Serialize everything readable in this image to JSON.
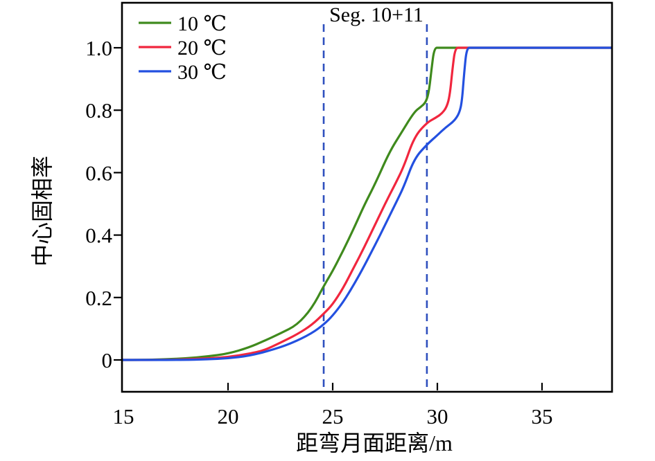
{
  "chart_data": {
    "type": "line",
    "title": "",
    "xlabel": "距弯月面距离/m",
    "ylabel": "中心固相率",
    "annotation": "Seg. 10+11",
    "xlim": [
      14.93,
      38.4
    ],
    "ylim": [
      -0.102,
      1.144
    ],
    "grid": false,
    "legend_position": "upper-left-inside",
    "x_ticks": [
      15,
      20,
      25,
      30,
      35
    ],
    "x_tick_labels": [
      "15",
      "20",
      "25",
      "30",
      "35"
    ],
    "y_ticks": [
      0,
      0.2,
      0.4,
      0.6,
      0.8,
      1.0
    ],
    "y_tick_labels": [
      "0",
      "0.2",
      "0.4",
      "0.6",
      "0.8",
      "1.0"
    ],
    "dashed_guides": {
      "x_values": [
        24.57,
        29.5
      ],
      "color": "#2e4fbe",
      "label": "Seg. 10+11"
    },
    "series": [
      {
        "name": "10 ℃",
        "color": "#3f8a1d",
        "points": [
          [
            14.93,
            0
          ],
          [
            16,
            0
          ],
          [
            17,
            0.002
          ],
          [
            18,
            0.005
          ],
          [
            19,
            0.011
          ],
          [
            20,
            0.02
          ],
          [
            21,
            0.04
          ],
          [
            21.7,
            0.06
          ],
          [
            22.5,
            0.085
          ],
          [
            23.3,
            0.112
          ],
          [
            24,
            0.165
          ],
          [
            24.6,
            0.24
          ],
          [
            25,
            0.285
          ],
          [
            25.5,
            0.35
          ],
          [
            26,
            0.42
          ],
          [
            26.5,
            0.495
          ],
          [
            27,
            0.56
          ],
          [
            27.7,
            0.665
          ],
          [
            28.3,
            0.73
          ],
          [
            28.9,
            0.795
          ],
          [
            29.2,
            0.81
          ],
          [
            29.45,
            0.825
          ],
          [
            29.6,
            0.86
          ],
          [
            29.72,
            0.93
          ],
          [
            29.85,
            1
          ],
          [
            30.1,
            1
          ],
          [
            38.34,
            1
          ]
        ]
      },
      {
        "name": "20 ℃",
        "color": "#f1263e",
        "points": [
          [
            14.93,
            0
          ],
          [
            17,
            0
          ],
          [
            18,
            0.002
          ],
          [
            19,
            0.005
          ],
          [
            20,
            0.009
          ],
          [
            21,
            0.02
          ],
          [
            21.7,
            0.03
          ],
          [
            22.5,
            0.055
          ],
          [
            23.3,
            0.082
          ],
          [
            24,
            0.112
          ],
          [
            24.6,
            0.15
          ],
          [
            25,
            0.178
          ],
          [
            25.5,
            0.23
          ],
          [
            26,
            0.295
          ],
          [
            26.5,
            0.36
          ],
          [
            27,
            0.43
          ],
          [
            27.5,
            0.5
          ],
          [
            28,
            0.565
          ],
          [
            28.4,
            0.62
          ],
          [
            28.9,
            0.715
          ],
          [
            29.5,
            0.76
          ],
          [
            29.9,
            0.775
          ],
          [
            30.2,
            0.788
          ],
          [
            30.45,
            0.81
          ],
          [
            30.6,
            0.85
          ],
          [
            30.72,
            0.93
          ],
          [
            30.85,
            1
          ],
          [
            31.1,
            1
          ],
          [
            38.34,
            1
          ]
        ]
      },
      {
        "name": "30 ℃",
        "color": "#2350e0",
        "points": [
          [
            14.93,
            0
          ],
          [
            18,
            0
          ],
          [
            19,
            0.002
          ],
          [
            20,
            0.005
          ],
          [
            21,
            0.013
          ],
          [
            22,
            0.03
          ],
          [
            23,
            0.052
          ],
          [
            24,
            0.085
          ],
          [
            24.6,
            0.115
          ],
          [
            25,
            0.142
          ],
          [
            25.5,
            0.185
          ],
          [
            26,
            0.24
          ],
          [
            26.5,
            0.3
          ],
          [
            27,
            0.365
          ],
          [
            27.5,
            0.432
          ],
          [
            28,
            0.5
          ],
          [
            28.4,
            0.555
          ],
          [
            28.9,
            0.645
          ],
          [
            29.5,
            0.69
          ],
          [
            30,
            0.72
          ],
          [
            30.4,
            0.745
          ],
          [
            30.8,
            0.765
          ],
          [
            31.05,
            0.79
          ],
          [
            31.18,
            0.83
          ],
          [
            31.28,
            0.92
          ],
          [
            31.4,
            1
          ],
          [
            31.65,
            1
          ],
          [
            38.34,
            1
          ]
        ]
      }
    ]
  },
  "colors": {
    "axis": "#000000",
    "background": "#ffffff"
  }
}
